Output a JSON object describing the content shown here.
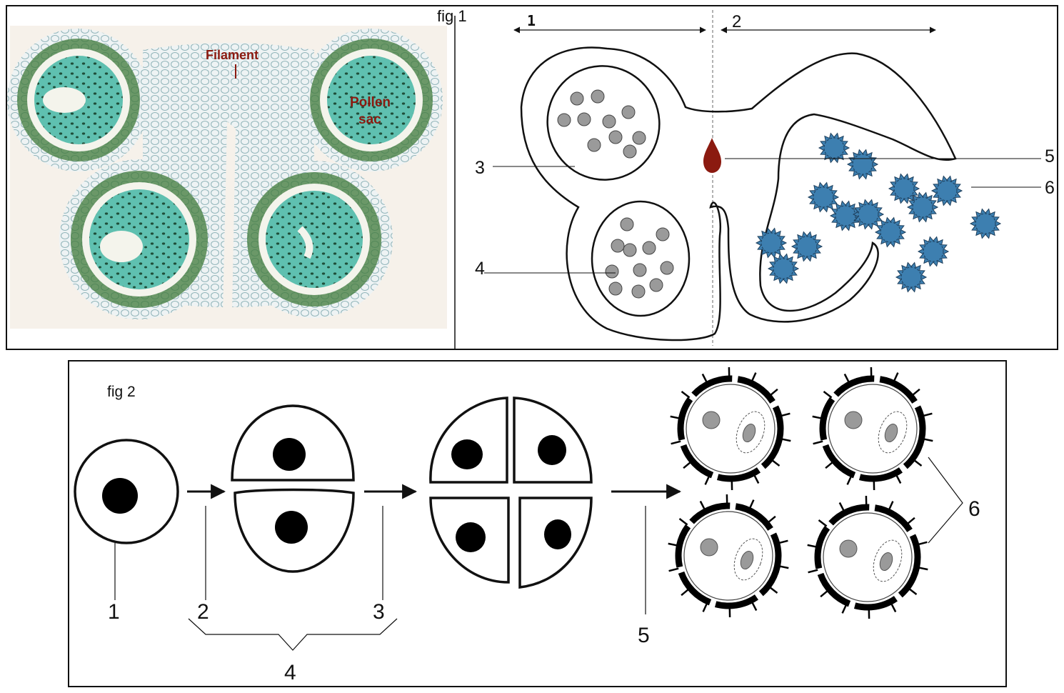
{
  "fig1": {
    "title": "fig 1",
    "photo_labels": {
      "filament": "Filament",
      "pollen_line1": "Pollen",
      "pollen_line2": "sac"
    },
    "arrow_labels": {
      "left": "1",
      "right": "2"
    },
    "callouts": {
      "c3": "3",
      "c4": "4",
      "c5": "5",
      "c6": "6"
    }
  },
  "fig2": {
    "title": "fig 2",
    "callouts": {
      "c1": "1",
      "c2": "2",
      "c3": "3",
      "c4": "4",
      "c5": "5",
      "c6": "6"
    }
  },
  "colors": {
    "tissue": "#5fc0b0",
    "tissue_dark": "#2e6a3a",
    "label_red": "#8b1a10",
    "pollen_blue": "#3d7fb0",
    "cell_gray": "#9a9a9a",
    "dropped_red": "#8b1a10"
  }
}
